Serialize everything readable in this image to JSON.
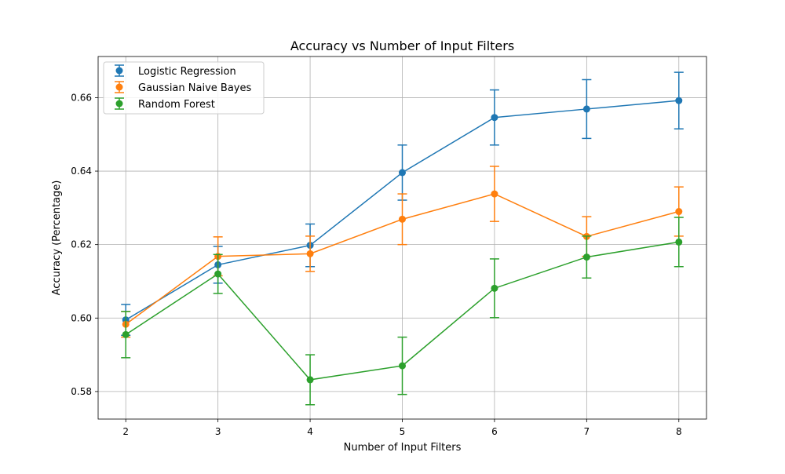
{
  "chart_data": {
    "type": "line",
    "title": "Accuracy vs Number of Input Filters",
    "xlabel": "Number of Input Filters",
    "ylabel": "Accuracy (Percentage)",
    "x": [
      2,
      3,
      4,
      5,
      6,
      7,
      8
    ],
    "xlim": [
      1.7,
      8.3
    ],
    "ylim": [
      0.5725,
      0.6712
    ],
    "yticks": [
      0.58,
      0.6,
      0.62,
      0.64,
      0.66
    ],
    "ytick_labels": [
      "0.58",
      "0.60",
      "0.62",
      "0.64",
      "0.66"
    ],
    "xtick_labels": [
      "2",
      "3",
      "4",
      "5",
      "6",
      "7",
      "8"
    ],
    "grid": true,
    "legend_position": "top-left",
    "error_bars": true,
    "series": [
      {
        "name": "Logistic Regression",
        "color": "#1f77b4",
        "values": [
          0.5995,
          0.6145,
          0.6198,
          0.6396,
          0.6546,
          0.6569,
          0.6592
        ],
        "errors": [
          0.0042,
          0.005,
          0.0058,
          0.0075,
          0.0075,
          0.008,
          0.0077
        ]
      },
      {
        "name": "Gaussian Naive Bayes",
        "color": "#ff7f0e",
        "values": [
          0.5983,
          0.6168,
          0.6175,
          0.6269,
          0.6338,
          0.6222,
          0.629
        ],
        "errors": [
          0.0035,
          0.0053,
          0.0048,
          0.0069,
          0.0075,
          0.0054,
          0.0067
        ]
      },
      {
        "name": "Random Forest",
        "color": "#2ca02c",
        "values": [
          0.5955,
          0.612,
          0.5832,
          0.587,
          0.6081,
          0.6166,
          0.6207
        ],
        "errors": [
          0.0063,
          0.0053,
          0.0068,
          0.0078,
          0.008,
          0.0057,
          0.0067
        ]
      }
    ]
  }
}
